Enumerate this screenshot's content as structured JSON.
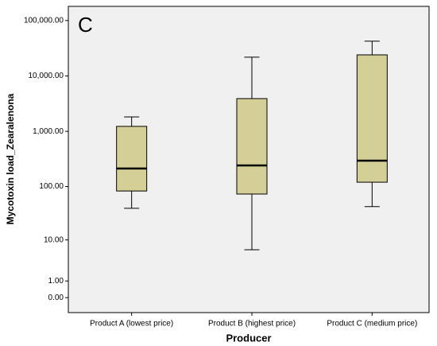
{
  "chart_data": {
    "type": "box",
    "annotation": "C",
    "x_label": "Producer",
    "y_label": "Mycotoxin load_Zearalenona",
    "categories": [
      "Product A (lowest price)",
      "Product B (highest price)",
      "Product C (medium price)"
    ],
    "boxes": [
      {
        "whislo": 40,
        "q1": 83,
        "median": 213,
        "q3": 1230,
        "whishi": 1820
      },
      {
        "whislo": 6.3,
        "q1": 73,
        "median": 242,
        "q3": 3900,
        "whishi": 21800
      },
      {
        "whislo": 43,
        "q1": 120,
        "median": 295,
        "q3": 24000,
        "whishi": 42400
      }
    ],
    "color": "#d4cf97",
    "yscale": "safelog",
    "ylim": [
      -0.86,
      180000
    ],
    "yticks": [
      {
        "value": 0,
        "label": "0.00"
      },
      {
        "value": 1,
        "label": "1.00"
      },
      {
        "value": 10,
        "label": "10.00"
      },
      {
        "value": 100,
        "label": "100.00"
      },
      {
        "value": 1000,
        "label": "1,000.00"
      },
      {
        "value": 10000,
        "label": "10,000.00"
      },
      {
        "value": 100000,
        "label": "100,000.00"
      }
    ]
  }
}
